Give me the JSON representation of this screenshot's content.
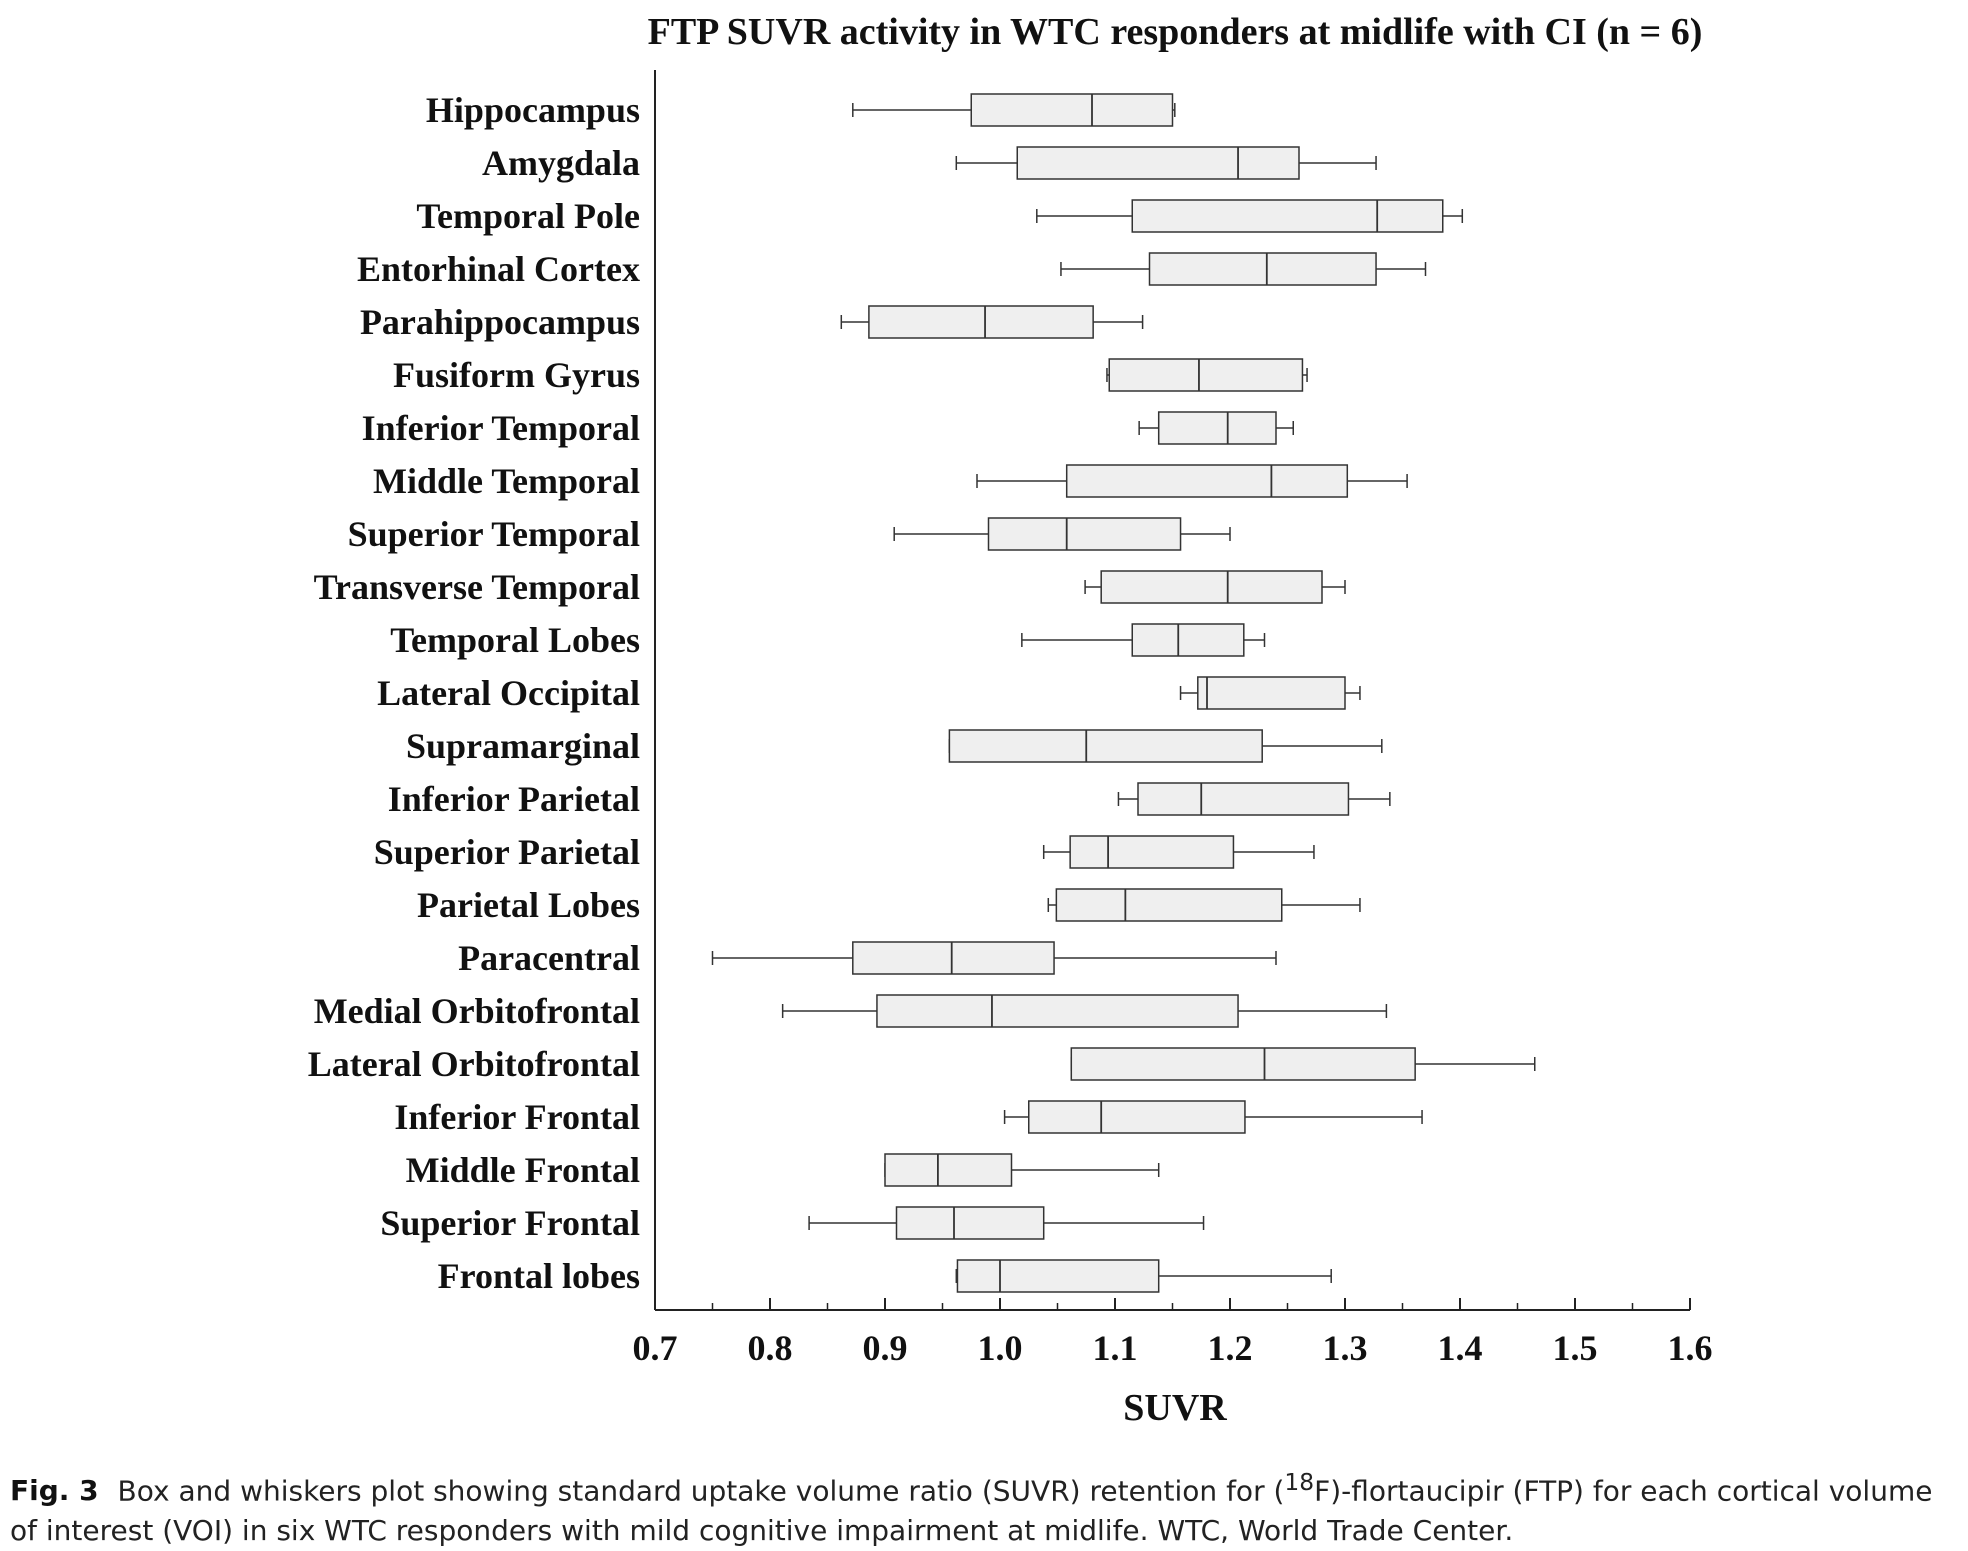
{
  "chart_data": {
    "type": "box",
    "title": "FTP SUVR activity in WTC responders at midlife with CI (n = 6)",
    "xlabel": "SUVR",
    "ylabel": "",
    "xlim": [
      0.7,
      1.6
    ],
    "xticks": [
      "0.7",
      "0.8",
      "0.9",
      "1.0",
      "1.1",
      "1.2",
      "1.3",
      "1.4",
      "1.5",
      "1.6"
    ],
    "grid": false,
    "box_fill": "#efefef",
    "stroke_color": "#333333",
    "categories": [
      "Hippocampus",
      "Amygdala",
      "Temporal Pole",
      "Entorhinal Cortex",
      "Parahippocampus",
      "Fusiform Gyrus",
      "Inferior Temporal",
      "Middle Temporal",
      "Superior Temporal",
      "Transverse Temporal",
      "Temporal Lobes",
      "Lateral Occipital",
      "Supramarginal",
      "Inferior Parietal",
      "Superior Parietal",
      "Parietal Lobes",
      "Paracentral",
      "Medial Orbitofrontal",
      "Lateral Orbitofrontal",
      "Inferior Frontal",
      "Middle Frontal",
      "Superior Frontal",
      "Frontal lobes"
    ],
    "boxes": [
      {
        "min": 0.872,
        "q1": 0.975,
        "median": 1.08,
        "q3": 1.15,
        "max": 1.152
      },
      {
        "min": 0.962,
        "q1": 1.015,
        "median": 1.207,
        "q3": 1.26,
        "max": 1.327
      },
      {
        "min": 1.032,
        "q1": 1.115,
        "median": 1.328,
        "q3": 1.385,
        "max": 1.402
      },
      {
        "min": 1.053,
        "q1": 1.13,
        "median": 1.232,
        "q3": 1.327,
        "max": 1.37
      },
      {
        "min": 0.862,
        "q1": 0.886,
        "median": 0.987,
        "q3": 1.081,
        "max": 1.124
      },
      {
        "min": 1.093,
        "q1": 1.095,
        "median": 1.173,
        "q3": 1.263,
        "max": 1.267
      },
      {
        "min": 1.121,
        "q1": 1.138,
        "median": 1.198,
        "q3": 1.24,
        "max": 1.255
      },
      {
        "min": 0.98,
        "q1": 1.058,
        "median": 1.236,
        "q3": 1.302,
        "max": 1.354
      },
      {
        "min": 0.908,
        "q1": 0.99,
        "median": 1.058,
        "q3": 1.157,
        "max": 1.2
      },
      {
        "min": 1.074,
        "q1": 1.088,
        "median": 1.198,
        "q3": 1.28,
        "max": 1.3
      },
      {
        "min": 1.019,
        "q1": 1.115,
        "median": 1.155,
        "q3": 1.212,
        "max": 1.23
      },
      {
        "min": 1.157,
        "q1": 1.172,
        "median": 1.18,
        "q3": 1.3,
        "max": 1.313
      },
      {
        "min": 0.956,
        "q1": 0.956,
        "median": 1.075,
        "q3": 1.228,
        "max": 1.332
      },
      {
        "min": 1.103,
        "q1": 1.12,
        "median": 1.175,
        "q3": 1.303,
        "max": 1.339
      },
      {
        "min": 1.038,
        "q1": 1.061,
        "median": 1.094,
        "q3": 1.203,
        "max": 1.273
      },
      {
        "min": 1.042,
        "q1": 1.049,
        "median": 1.109,
        "q3": 1.245,
        "max": 1.313
      },
      {
        "min": 0.75,
        "q1": 0.872,
        "median": 0.958,
        "q3": 1.047,
        "max": 1.24
      },
      {
        "min": 0.811,
        "q1": 0.893,
        "median": 0.993,
        "q3": 1.207,
        "max": 1.336
      },
      {
        "min": 1.062,
        "q1": 1.062,
        "median": 1.23,
        "q3": 1.361,
        "max": 1.465
      },
      {
        "min": 1.004,
        "q1": 1.025,
        "median": 1.088,
        "q3": 1.213,
        "max": 1.367
      },
      {
        "min": 0.9,
        "q1": 0.9,
        "median": 0.946,
        "q3": 1.01,
        "max": 1.138
      },
      {
        "min": 0.834,
        "q1": 0.91,
        "median": 0.96,
        "q3": 1.038,
        "max": 1.177
      },
      {
        "min": 0.962,
        "q1": 0.963,
        "median": 1.0,
        "q3": 1.138,
        "max": 1.288
      }
    ]
  },
  "caption": {
    "label": "Fig. 3",
    "text_before": "Box and whiskers plot showing standard uptake volume ratio (SUVR) retention for (",
    "superscript": "18",
    "text_after": "F)-flortaucipir (FTP) for each cortical volume of interest (VOI) in six WTC responders with mild cognitive impairment at midlife. WTC, World Trade Center."
  }
}
